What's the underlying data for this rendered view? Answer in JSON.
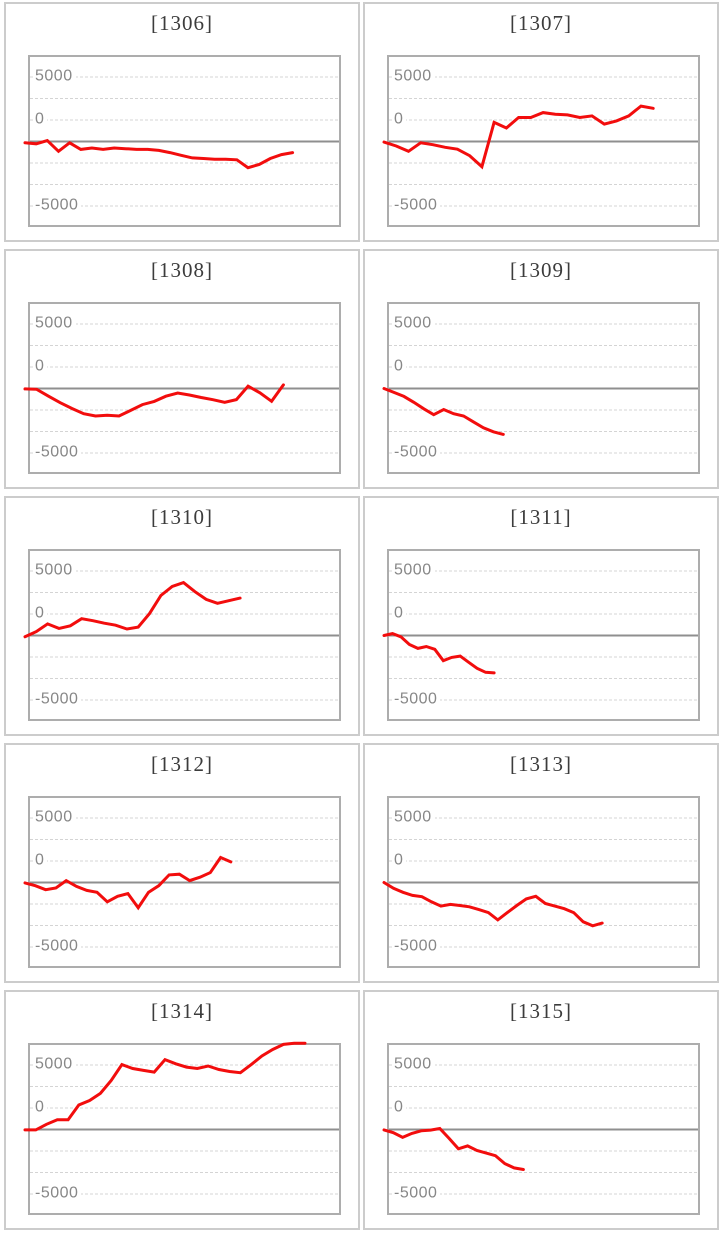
{
  "page": {
    "background": "#ffffff",
    "grid": "2 columns x 5 rows of machine payout sparkline panels"
  },
  "style": {
    "series_color": "#f20d0d",
    "grid_color": "#d4d4d4",
    "zero_line_color": "#8f8f8f",
    "plot_border_color": "#adadad",
    "card_border_color": "#cccccc",
    "label_color": "#878787",
    "title_color": "#3c3c3c"
  },
  "axis": {
    "labels": [
      "5000",
      "0",
      "-5000"
    ],
    "label_values": [
      5000,
      0,
      -5000
    ],
    "gridline_count": 7,
    "grid_style": "dashed, middle zero line solid"
  },
  "chart_data": [
    {
      "type": "line",
      "title": "[1306]",
      "machine_number": 1306,
      "ylabels": [
        5000,
        0,
        -5000
      ],
      "ylim": [
        -6550,
        6550
      ],
      "span": 0.85,
      "values": [
        -100,
        -180,
        80,
        -760,
        -100,
        -610,
        -500,
        -610,
        -500,
        -560,
        -610,
        -610,
        -690,
        -860,
        -1070,
        -1270,
        -1320,
        -1370,
        -1370,
        -1420,
        -2030,
        -1780,
        -1320,
        -1015,
        -860
      ]
    },
    {
      "type": "line",
      "title": "[1307]",
      "machine_number": 1307,
      "ylabels": [
        5000,
        0,
        -5000
      ],
      "ylim": [
        -6550,
        6550
      ],
      "span": 0.855,
      "values": [
        -50,
        -350,
        -760,
        -100,
        -250,
        -450,
        -600,
        -1100,
        -1950,
        1480,
        1045,
        1860,
        1860,
        2240,
        2115,
        2060,
        1860,
        1985,
        1350,
        1600,
        1985,
        2745,
        2570
      ]
    },
    {
      "type": "line",
      "title": "[1308]",
      "machine_number": 1308,
      "ylabels": [
        5000,
        0,
        -5000
      ],
      "ylim": [
        -6550,
        6550
      ],
      "span": 0.82,
      "values": [
        -30,
        -60,
        -600,
        -1100,
        -1550,
        -1950,
        -2130,
        -2080,
        -2130,
        -1700,
        -1250,
        -1000,
        -600,
        -350,
        -500,
        -700,
        -870,
        -1070,
        -860,
        180,
        -330,
        -990,
        280
      ]
    },
    {
      "type": "line",
      "title": "[1309]",
      "machine_number": 1309,
      "ylabels": [
        5000,
        0,
        -5000
      ],
      "ylim": [
        -6550,
        6550
      ],
      "span": 0.37,
      "values": [
        0,
        -300,
        -610,
        -1070,
        -1575,
        -2030,
        -1625,
        -1950,
        -2135,
        -2590,
        -3050,
        -3360,
        -3560
      ]
    },
    {
      "type": "line",
      "title": "[1310]",
      "machine_number": 1310,
      "ylabels": [
        5000,
        0,
        -5000
      ],
      "ylim": [
        -6550,
        6550
      ],
      "span": 0.68,
      "values": [
        -100,
        300,
        900,
        550,
        750,
        1300,
        1150,
        950,
        800,
        500,
        650,
        1700,
        3100,
        3800,
        4100,
        3400,
        2800,
        2500,
        2700,
        2900
      ]
    },
    {
      "type": "line",
      "title": "[1311]",
      "machine_number": 1311,
      "ylabels": [
        5000,
        0,
        -5000
      ],
      "ylim": [
        -6550,
        6550
      ],
      "span": 0.34,
      "values": [
        0,
        150,
        -100,
        -700,
        -1000,
        -850,
        -1070,
        -1950,
        -1700,
        -1600,
        -2080,
        -2540,
        -2850,
        -2900
      ]
    },
    {
      "type": "line",
      "title": "[1312]",
      "machine_number": 1312,
      "ylabels": [
        5000,
        0,
        -5000
      ],
      "ylim": [
        -6550,
        6550
      ],
      "span": 0.65,
      "values": [
        -30,
        -250,
        -560,
        -430,
        150,
        -300,
        -610,
        -760,
        -1500,
        -1070,
        -860,
        -1950,
        -760,
        -250,
        590,
        640,
        150,
        410,
        770,
        1940,
        1600
      ]
    },
    {
      "type": "line",
      "title": "[1313]",
      "machine_number": 1313,
      "ylabels": [
        5000,
        0,
        -5000
      ],
      "ylim": [
        -6550,
        6550
      ],
      "span": 0.69,
      "values": [
        0,
        -450,
        -760,
        -1000,
        -1100,
        -1500,
        -1830,
        -1700,
        -1780,
        -1880,
        -2100,
        -2330,
        -2900,
        -2330,
        -1780,
        -1270,
        -1070,
        -1625,
        -1830,
        -2030,
        -2330,
        -3050,
        -3360,
        -3150
      ]
    },
    {
      "type": "line",
      "title": "[1314]",
      "machine_number": 1314,
      "ylabels": [
        5000,
        0,
        -5000
      ],
      "ylim": [
        -6550,
        6550
      ],
      "span": 0.89,
      "values": [
        -30,
        -30,
        400,
        760,
        760,
        1900,
        2250,
        2800,
        3800,
        5030,
        4730,
        4580,
        4450,
        5420,
        5090,
        4840,
        4730,
        4920,
        4650,
        4500,
        4400,
        5030,
        5700,
        6200,
        6600,
        6690,
        6690
      ]
    },
    {
      "type": "line",
      "title": "[1315]",
      "machine_number": 1315,
      "ylabels": [
        5000,
        0,
        -5000
      ],
      "ylim": [
        -6550,
        6550
      ],
      "span": 0.435,
      "values": [
        -30,
        -250,
        -610,
        -300,
        -100,
        -50,
        75,
        -690,
        -1500,
        -1270,
        -1625,
        -1830,
        -2030,
        -2640,
        -2975,
        -3100
      ]
    }
  ]
}
